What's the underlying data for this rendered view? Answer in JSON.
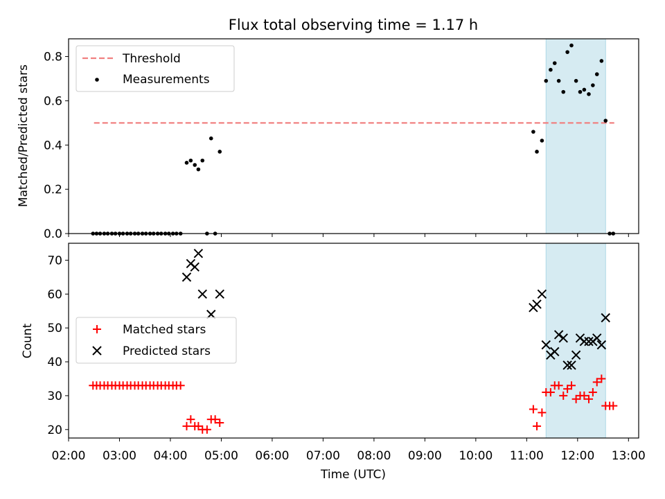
{
  "chart_data": [
    {
      "type": "scatter",
      "title": "Flux total observing time = 1.17 h",
      "ylabel": "Matched/Predicted stars",
      "xlabel": "",
      "ylim": [
        0,
        0.88
      ],
      "xlim": [
        2.0,
        13.2
      ],
      "yticks": [
        "0.0",
        "0.2",
        "0.4",
        "0.6",
        "0.8"
      ],
      "highlight": {
        "x_start": 11.38,
        "x_end": 12.55,
        "color": "#add8e6"
      },
      "legend": {
        "placement": "upper-left",
        "entries": [
          {
            "label": "Threshold",
            "style": "dashed-line",
            "color": "#f08080"
          },
          {
            "label": "Measurements",
            "style": "dot",
            "color": "#000000"
          }
        ]
      },
      "threshold": {
        "name": "Threshold",
        "y": 0.5,
        "x": [
          2.5,
          12.72
        ],
        "color": "#f08080"
      },
      "series": [
        {
          "name": "Measurements",
          "color": "#000000",
          "points": [
            [
              2.48,
              0
            ],
            [
              2.55,
              0
            ],
            [
              2.62,
              0
            ],
            [
              2.7,
              0
            ],
            [
              2.77,
              0
            ],
            [
              2.85,
              0
            ],
            [
              2.92,
              0
            ],
            [
              3.0,
              0
            ],
            [
              3.07,
              0
            ],
            [
              3.15,
              0
            ],
            [
              3.22,
              0
            ],
            [
              3.3,
              0
            ],
            [
              3.37,
              0
            ],
            [
              3.45,
              0
            ],
            [
              3.52,
              0
            ],
            [
              3.6,
              0
            ],
            [
              3.67,
              0
            ],
            [
              3.75,
              0
            ],
            [
              3.82,
              0
            ],
            [
              3.9,
              0
            ],
            [
              3.97,
              0
            ],
            [
              4.05,
              0
            ],
            [
              4.12,
              0
            ],
            [
              4.2,
              0
            ],
            [
              4.32,
              0.32
            ],
            [
              4.4,
              0.33
            ],
            [
              4.48,
              0.31
            ],
            [
              4.55,
              0.29
            ],
            [
              4.63,
              0.33
            ],
            [
              4.72,
              0
            ],
            [
              4.8,
              0.43
            ],
            [
              4.88,
              0
            ],
            [
              4.97,
              0.37
            ],
            [
              11.13,
              0.46
            ],
            [
              11.2,
              0.37
            ],
            [
              11.3,
              0.42
            ],
            [
              11.38,
              0.69
            ],
            [
              11.47,
              0.74
            ],
            [
              11.55,
              0.77
            ],
            [
              11.63,
              0.69
            ],
            [
              11.72,
              0.64
            ],
            [
              11.8,
              0.82
            ],
            [
              11.88,
              0.85
            ],
            [
              11.97,
              0.69
            ],
            [
              12.05,
              0.64
            ],
            [
              12.13,
              0.65
            ],
            [
              12.22,
              0.63
            ],
            [
              12.3,
              0.67
            ],
            [
              12.38,
              0.72
            ],
            [
              12.47,
              0.78
            ],
            [
              12.55,
              0.51
            ],
            [
              12.63,
              0
            ],
            [
              12.7,
              0
            ]
          ]
        }
      ]
    },
    {
      "type": "scatter",
      "title": "",
      "ylabel": "Count",
      "xlabel": "Time (UTC)",
      "ylim": [
        17.5,
        75
      ],
      "xlim": [
        2.0,
        13.2
      ],
      "yticks": [
        "20",
        "30",
        "40",
        "50",
        "60",
        "70"
      ],
      "xticks": [
        "02:00",
        "03:00",
        "04:00",
        "05:00",
        "06:00",
        "07:00",
        "08:00",
        "09:00",
        "10:00",
        "11:00",
        "12:00",
        "13:00"
      ],
      "highlight": {
        "x_start": 11.38,
        "x_end": 12.55,
        "color": "#add8e6"
      },
      "legend": {
        "placement": "center-left",
        "entries": [
          {
            "label": "Matched stars",
            "style": "plus",
            "color": "#ff0000"
          },
          {
            "label": "Predicted stars",
            "style": "x",
            "color": "#000000"
          }
        ]
      },
      "series": [
        {
          "name": "Matched stars",
          "marker": "plus",
          "color": "#ff0000",
          "points": [
            [
              2.48,
              33
            ],
            [
              2.55,
              33
            ],
            [
              2.62,
              33
            ],
            [
              2.7,
              33
            ],
            [
              2.77,
              33
            ],
            [
              2.85,
              33
            ],
            [
              2.92,
              33
            ],
            [
              3.0,
              33
            ],
            [
              3.07,
              33
            ],
            [
              3.15,
              33
            ],
            [
              3.22,
              33
            ],
            [
              3.3,
              33
            ],
            [
              3.37,
              33
            ],
            [
              3.45,
              33
            ],
            [
              3.52,
              33
            ],
            [
              3.6,
              33
            ],
            [
              3.67,
              33
            ],
            [
              3.75,
              33
            ],
            [
              3.82,
              33
            ],
            [
              3.9,
              33
            ],
            [
              3.97,
              33
            ],
            [
              4.05,
              33
            ],
            [
              4.12,
              33
            ],
            [
              4.2,
              33
            ],
            [
              4.32,
              21
            ],
            [
              4.4,
              23
            ],
            [
              4.48,
              21
            ],
            [
              4.55,
              21
            ],
            [
              4.63,
              20
            ],
            [
              4.72,
              20
            ],
            [
              4.8,
              23
            ],
            [
              4.88,
              23
            ],
            [
              4.97,
              22
            ],
            [
              11.13,
              26
            ],
            [
              11.2,
              21
            ],
            [
              11.3,
              25
            ],
            [
              11.38,
              31
            ],
            [
              11.47,
              31
            ],
            [
              11.55,
              33
            ],
            [
              11.63,
              33
            ],
            [
              11.72,
              30
            ],
            [
              11.8,
              32
            ],
            [
              11.88,
              33
            ],
            [
              11.97,
              29
            ],
            [
              12.05,
              30
            ],
            [
              12.13,
              30
            ],
            [
              12.22,
              29
            ],
            [
              12.3,
              31
            ],
            [
              12.38,
              34
            ],
            [
              12.47,
              35
            ],
            [
              12.55,
              27
            ],
            [
              12.63,
              27
            ],
            [
              12.7,
              27
            ]
          ]
        },
        {
          "name": "Predicted stars",
          "marker": "x",
          "color": "#000000",
          "points": [
            [
              4.32,
              65
            ],
            [
              4.4,
              69
            ],
            [
              4.48,
              68
            ],
            [
              4.55,
              72
            ],
            [
              4.63,
              60
            ],
            [
              4.8,
              54
            ],
            [
              4.97,
              60
            ],
            [
              11.13,
              56
            ],
            [
              11.2,
              57
            ],
            [
              11.3,
              60
            ],
            [
              11.38,
              45
            ],
            [
              11.47,
              42
            ],
            [
              11.55,
              43
            ],
            [
              11.63,
              48
            ],
            [
              11.72,
              47
            ],
            [
              11.8,
              39
            ],
            [
              11.88,
              39
            ],
            [
              11.97,
              42
            ],
            [
              12.05,
              47
            ],
            [
              12.13,
              46
            ],
            [
              12.22,
              46
            ],
            [
              12.3,
              46
            ],
            [
              12.38,
              47
            ],
            [
              12.47,
              45
            ],
            [
              12.55,
              53
            ]
          ]
        }
      ]
    }
  ]
}
